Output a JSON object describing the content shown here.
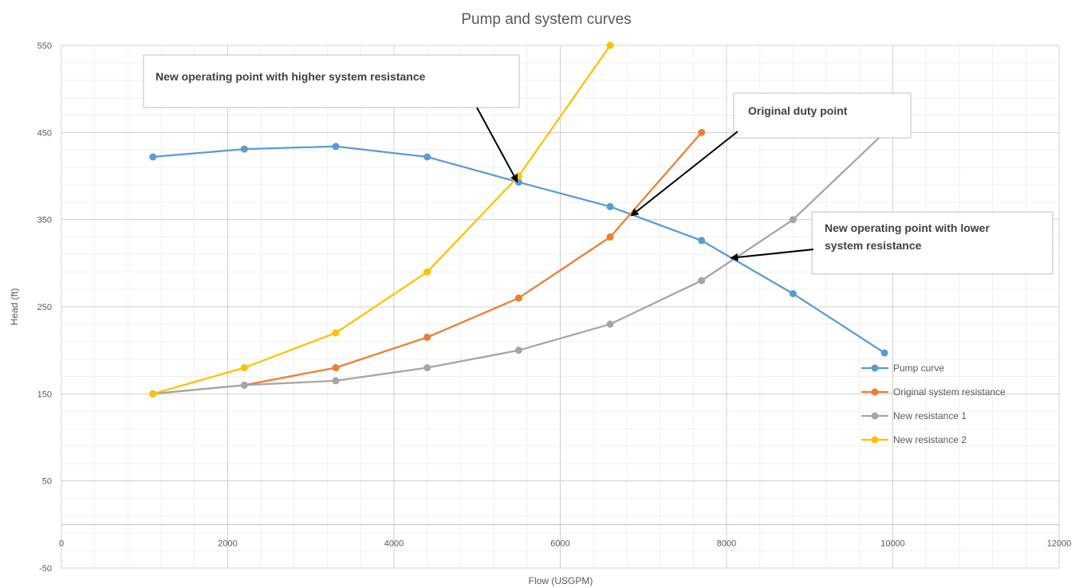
{
  "chart_data": {
    "type": "line",
    "title": "Pump and system curves",
    "xlabel": "Flow (USGPM)",
    "ylabel": "Head (ft)",
    "xlim": [
      0,
      12000
    ],
    "ylim": [
      -50,
      550
    ],
    "x_ticks": [
      "0",
      "2000",
      "4000",
      "6000",
      "8000",
      "10000",
      "12000"
    ],
    "y_ticks": [
      "550",
      "450",
      "350",
      "250",
      "150",
      "50",
      "-50"
    ],
    "grid": true,
    "legend_position": "right",
    "series": [
      {
        "name": "Pump curve",
        "color": "#5b9bd5",
        "points": [
          [
            1100,
            422
          ],
          [
            2200,
            431
          ],
          [
            3300,
            434
          ],
          [
            4400,
            422
          ],
          [
            5500,
            393
          ],
          [
            6600,
            365
          ],
          [
            7700,
            326
          ],
          [
            8800,
            265
          ],
          [
            9900,
            197
          ]
        ]
      },
      {
        "name": "Original system resistance",
        "color": "#ed7d31",
        "points": [
          [
            1100,
            150
          ],
          [
            2200,
            160
          ],
          [
            3300,
            180
          ],
          [
            4400,
            215
          ],
          [
            5500,
            260
          ],
          [
            6600,
            330
          ],
          [
            7700,
            450
          ]
        ]
      },
      {
        "name": "New resistance 1",
        "color": "#a5a5a5",
        "points": [
          [
            1100,
            150
          ],
          [
            2200,
            160
          ],
          [
            3300,
            165
          ],
          [
            4400,
            180
          ],
          [
            5500,
            200
          ],
          [
            6600,
            230
          ],
          [
            7700,
            280
          ],
          [
            8800,
            350
          ],
          [
            9900,
            450
          ]
        ]
      },
      {
        "name": "New resistance 2",
        "color": "#ffc000",
        "points": [
          [
            1100,
            150
          ],
          [
            2200,
            180
          ],
          [
            3300,
            220
          ],
          [
            4400,
            290
          ],
          [
            5500,
            400
          ],
          [
            6600,
            550
          ]
        ]
      }
    ],
    "annotations": [
      {
        "text": [
          "New operating point with higher system resistance"
        ],
        "target": [
          5480,
          394
        ]
      },
      {
        "text": [
          "Original duty point"
        ],
        "target": [
          6860,
          355
        ]
      },
      {
        "text": [
          "New operating point with lower",
          "system resistance"
        ],
        "target": [
          8060,
          306
        ]
      }
    ]
  }
}
